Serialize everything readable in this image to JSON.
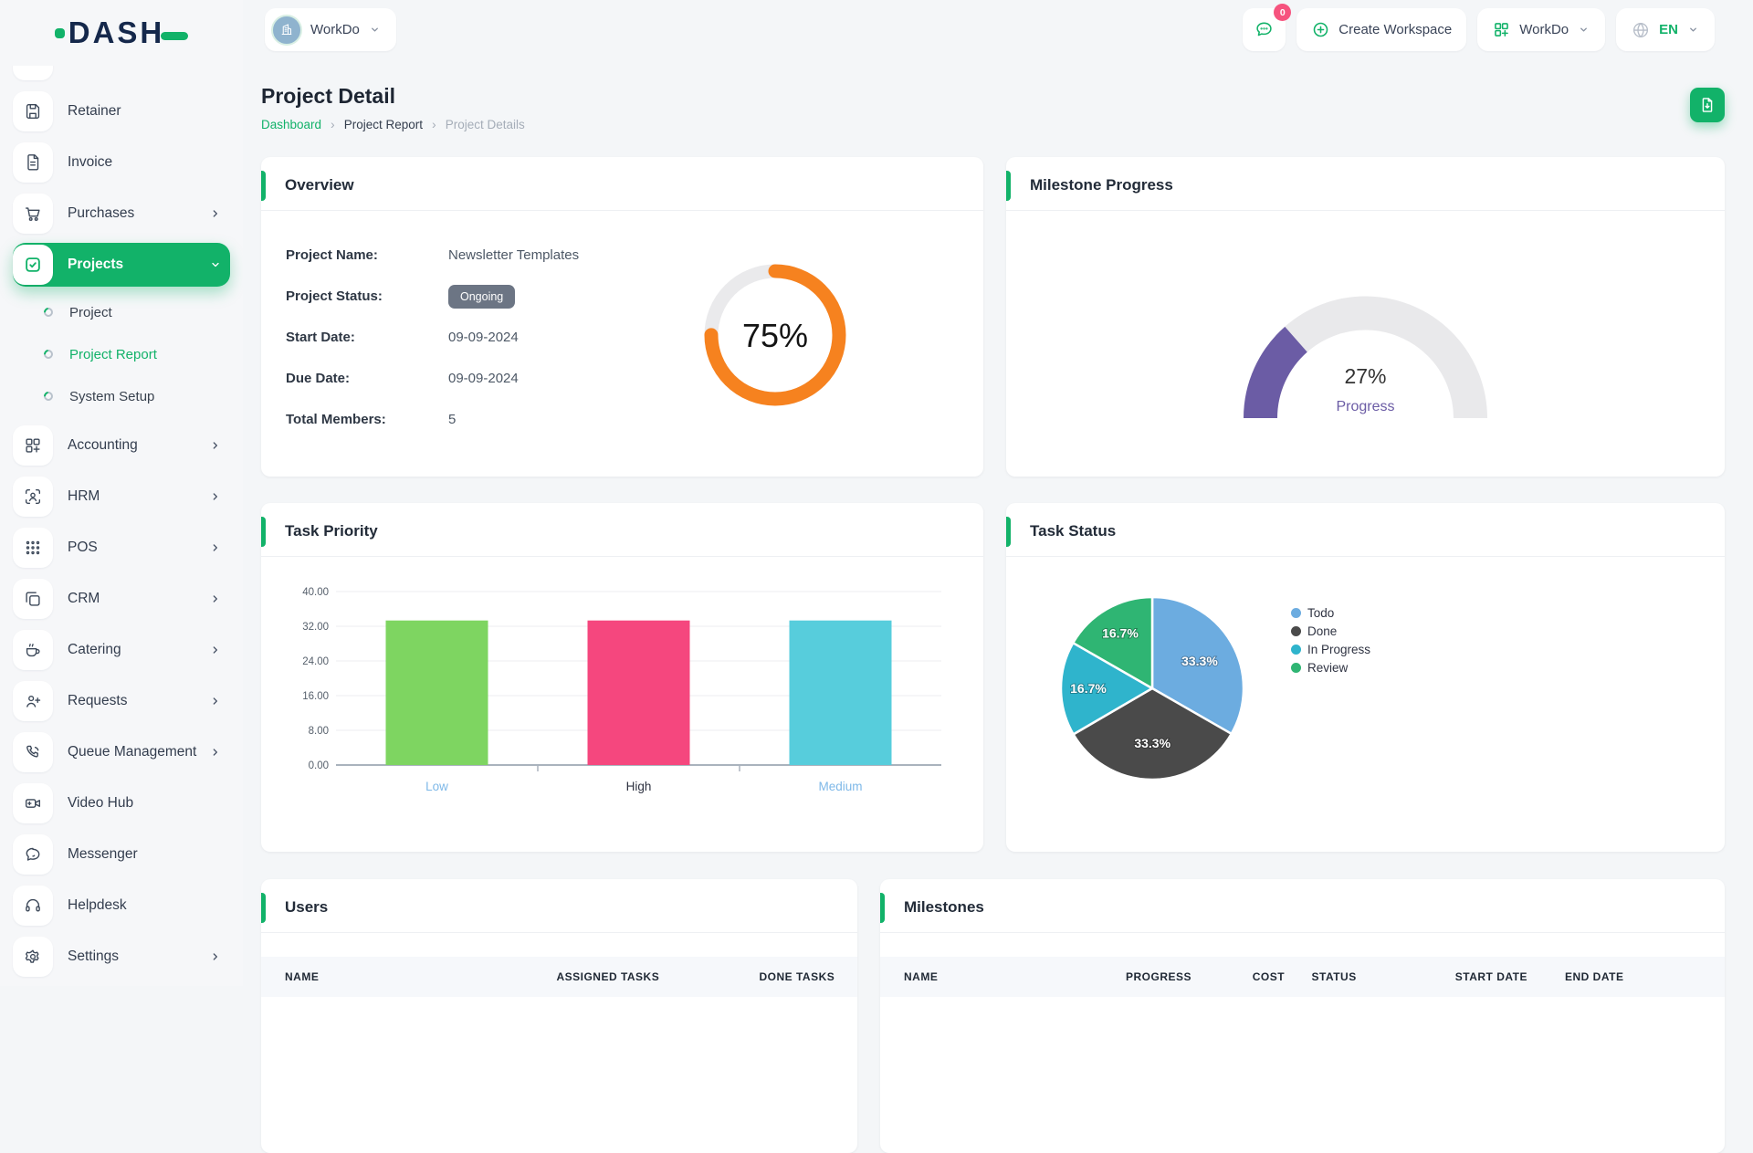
{
  "app": {
    "logo_text": "DASH",
    "accent_color": "#12B269"
  },
  "header": {
    "workspace_label": "WorkDo",
    "messages_badge": "0",
    "create_workspace_label": "Create Workspace",
    "app_menu_label": "WorkDo",
    "language": "EN"
  },
  "sidebar": {
    "items": [
      {
        "label": "Retainer",
        "icon": "floppy-icon"
      },
      {
        "label": "Invoice",
        "icon": "file-text-icon"
      },
      {
        "label": "Purchases",
        "icon": "cart-icon",
        "chevron": "right"
      },
      {
        "label": "Projects",
        "icon": "check-square-icon",
        "chevron": "down",
        "active": true,
        "children": [
          {
            "label": "Project"
          },
          {
            "label": "Project Report",
            "active": true
          },
          {
            "label": "System Setup"
          }
        ]
      },
      {
        "label": "Accounting",
        "icon": "grid-plus-icon",
        "chevron": "right"
      },
      {
        "label": "HRM",
        "icon": "user-scan-icon",
        "chevron": "right"
      },
      {
        "label": "POS",
        "icon": "dots-grid-icon",
        "chevron": "right"
      },
      {
        "label": "CRM",
        "icon": "copy-icon",
        "chevron": "right"
      },
      {
        "label": "Catering",
        "icon": "coffee-icon",
        "chevron": "right"
      },
      {
        "label": "Requests",
        "icon": "user-plus-icon",
        "chevron": "right"
      },
      {
        "label": "Queue Management",
        "icon": "phone-icon",
        "chevron": "right"
      },
      {
        "label": "Video Hub",
        "icon": "video-icon"
      },
      {
        "label": "Messenger",
        "icon": "chat-icon"
      },
      {
        "label": "Helpdesk",
        "icon": "headset-icon"
      },
      {
        "label": "Settings",
        "icon": "gear-icon",
        "chevron": "right"
      }
    ]
  },
  "page": {
    "title": "Project Detail",
    "breadcrumb": [
      {
        "label": "Dashboard",
        "type": "link"
      },
      {
        "label": "Project Report",
        "type": "strong"
      },
      {
        "label": "Project Details",
        "type": "muted"
      }
    ]
  },
  "cards": {
    "overview": {
      "title": "Overview",
      "fields": [
        {
          "label": "Project Name:",
          "value": "Newsletter Templates"
        },
        {
          "label": "Project Status:",
          "value": "Ongoing",
          "badge": true
        },
        {
          "label": "Start Date:",
          "value": "09-09-2024"
        },
        {
          "label": "Due Date:",
          "value": "09-09-2024"
        },
        {
          "label": "Total Members:",
          "value": "5"
        }
      ]
    },
    "milestone": {
      "title": "Milestone Progress"
    },
    "priority": {
      "title": "Task Priority"
    },
    "status": {
      "title": "Task Status"
    },
    "users": {
      "title": "Users",
      "columns": [
        "NAME",
        "ASSIGNED TASKS",
        "DONE TASKS"
      ]
    },
    "milestones": {
      "title": "Milestones",
      "columns": [
        "NAME",
        "PROGRESS",
        "COST",
        "STATUS",
        "START DATE",
        "END DATE"
      ]
    }
  },
  "chart_data": [
    {
      "id": "overview-donut",
      "type": "donut",
      "value": 75,
      "label": "75%",
      "color": "#F6821F",
      "track": "#EAEAEC",
      "max": 100
    },
    {
      "id": "milestone-gauge",
      "type": "gauge",
      "value": 27,
      "label": "27%",
      "sublabel": "Progress",
      "color": "#6B5CA5",
      "track": "#E9E9EB",
      "ylim": [
        0,
        100
      ]
    },
    {
      "id": "task-priority-bar",
      "type": "bar",
      "categories": [
        "Low",
        "High",
        "Medium"
      ],
      "values": [
        33.33,
        33.33,
        33.33
      ],
      "bar_colors": [
        "#7ED561",
        "#F5477E",
        "#57CDDC"
      ],
      "category_label_colors": [
        "#7EB8E8",
        "#2F3342",
        "#7EB8E8"
      ],
      "ylim": [
        0,
        40
      ],
      "yticks": [
        0,
        8,
        16,
        24,
        32,
        40
      ],
      "ytick_labels": [
        "0.00",
        "8.00",
        "16.00",
        "24.00",
        "32.00",
        "40.00"
      ],
      "grid": true,
      "title": "Task Priority",
      "xlabel": "",
      "ylabel": ""
    },
    {
      "id": "task-status-pie",
      "type": "pie",
      "labels": [
        "Todo",
        "Done",
        "In Progress",
        "Review"
      ],
      "values": [
        33.3,
        33.3,
        16.7,
        16.7
      ],
      "slice_labels": [
        "33.3%",
        "33.3%",
        "16.7%",
        "16.7%"
      ],
      "colors": [
        "#6CACE0",
        "#4A4A4A",
        "#2FB4CC",
        "#2FB573"
      ],
      "legend_position": "right",
      "title": "Task Status"
    }
  ]
}
